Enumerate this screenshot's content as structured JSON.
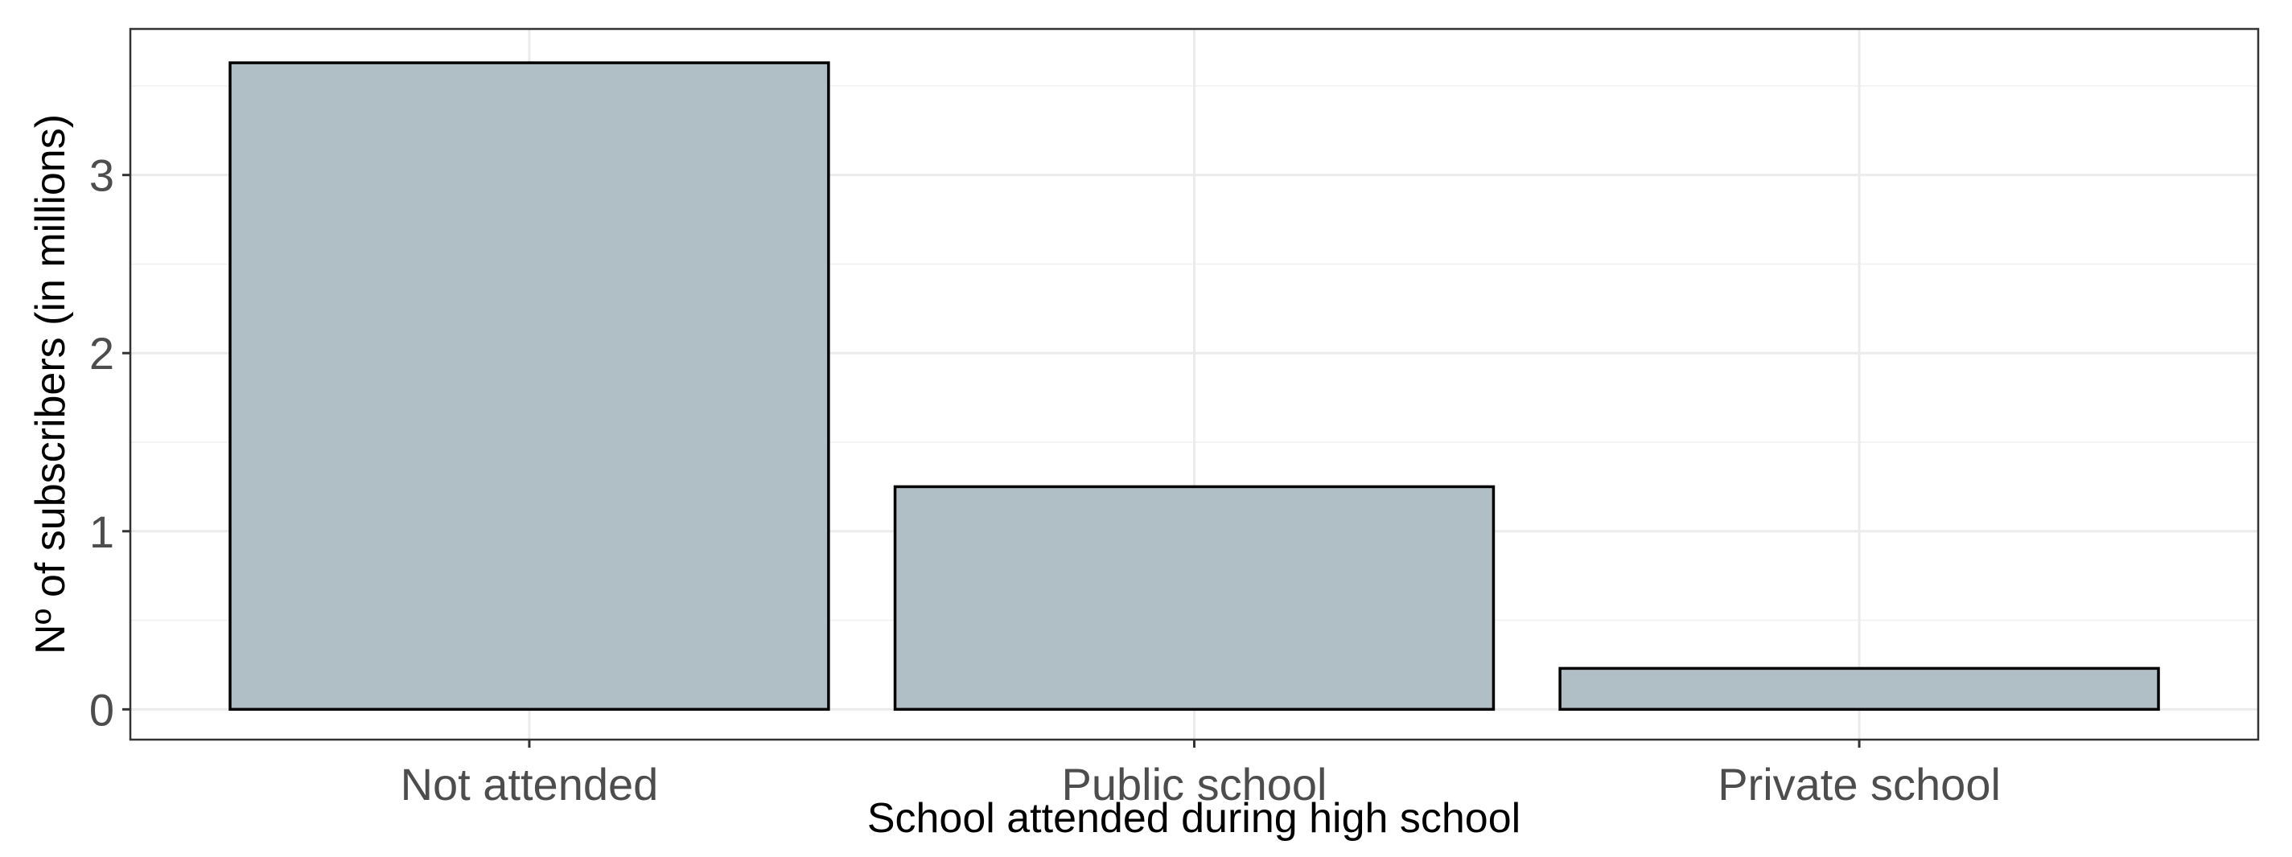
{
  "chart_data": {
    "type": "bar",
    "categories": [
      "Not attended",
      "Public school",
      "Private school"
    ],
    "values": [
      3.63,
      1.25,
      0.23
    ],
    "xlabel": "School attended during high school",
    "ylabel": "Nº of subscribers (in millions)",
    "ylim": [
      -0.17,
      3.82
    ],
    "yticks": [
      "0",
      "1",
      "2",
      "3"
    ],
    "grid": true,
    "bar_fill": "#b0bec5",
    "bar_outline": "#000000"
  }
}
